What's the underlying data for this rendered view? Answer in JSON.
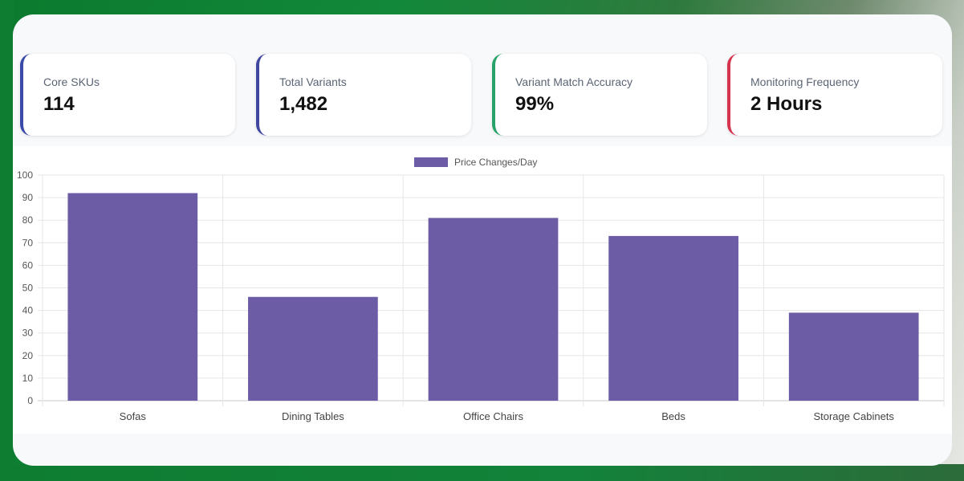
{
  "cards": [
    {
      "label": "Core SKUs",
      "value": "114",
      "accent": "#3a4aa8"
    },
    {
      "label": "Total Variants",
      "value": "1,482",
      "accent": "#3f47a0"
    },
    {
      "label": "Variant Match Accuracy",
      "value": "99%",
      "accent": "#27a36a"
    },
    {
      "label": "Monitoring Frequency",
      "value": "2 Hours",
      "accent": "#d6344f"
    }
  ],
  "chart_data": {
    "type": "bar",
    "categories": [
      "Sofas",
      "Dining Tables",
      "Office Chairs",
      "Beds",
      "Storage Cabinets"
    ],
    "series": [
      {
        "name": "Price Changes/Day",
        "values": [
          92,
          46,
          81,
          73,
          39
        ],
        "color": "#6b5ca5"
      }
    ],
    "ylim": [
      0,
      100
    ],
    "yticks": [
      0,
      10,
      20,
      30,
      40,
      50,
      60,
      70,
      80,
      90,
      100
    ],
    "grid": true,
    "legend": "top-center"
  }
}
